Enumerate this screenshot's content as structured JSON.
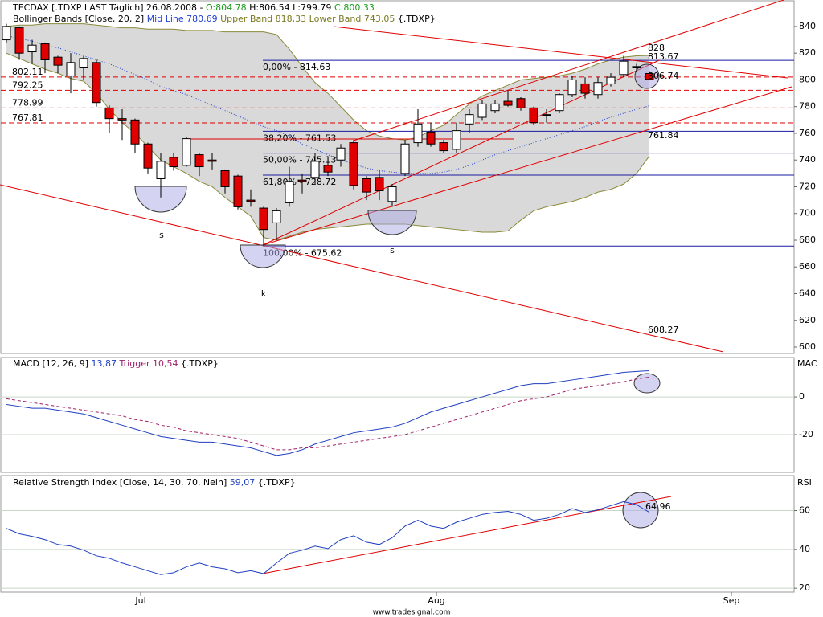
{
  "chart_data": [
    {
      "type": "candlestick",
      "title": "TECDAX [.TDXP LAST Täglich]",
      "date": "26.08.2008 -",
      "ohlc_labels": {
        "open": "O:804.78",
        "high": "H:806.54",
        "low": "L:799.79",
        "close": "C:800.33"
      },
      "indicator": {
        "name": "Bollinger Bands [Close, 20, 2]",
        "mid_label": "Mid Line 780,69",
        "upper_label": "Upper Band 818,33",
        "lower_label": "Lower Band 743,05",
        "source": "{.TDXP}"
      },
      "categories": [
        null,
        null,
        null,
        null,
        null,
        null,
        null,
        null,
        null,
        null,
        null,
        null,
        null,
        null,
        null,
        null,
        null,
        null,
        null,
        null,
        null,
        null,
        null,
        null,
        null,
        null,
        null,
        null,
        null,
        null,
        null,
        null,
        null,
        null,
        null,
        null,
        null,
        null,
        null,
        null,
        null,
        null,
        null,
        null,
        null,
        null,
        null,
        null,
        null,
        null,
        null
      ],
      "open": [
        830,
        839,
        821,
        827,
        817,
        803,
        809,
        813,
        779,
        771,
        770,
        752,
        726,
        742,
        736,
        744,
        740,
        732,
        728,
        710,
        704,
        693,
        708,
        725,
        727,
        736,
        740,
        753,
        726,
        727,
        709,
        730,
        753,
        761,
        753,
        748,
        767,
        772,
        777,
        784,
        786,
        779,
        774,
        777,
        789,
        797,
        789,
        797,
        804,
        810,
        804.78
      ],
      "high": [
        842,
        840,
        830,
        828,
        818,
        820,
        818,
        815,
        781,
        778,
        771,
        753,
        745,
        745,
        757,
        745,
        745,
        733,
        729,
        718,
        705,
        704,
        735,
        730,
        745,
        740,
        752,
        755,
        728,
        732,
        722,
        755,
        778,
        768,
        755,
        768,
        778,
        785,
        785,
        792,
        787,
        780,
        778,
        790,
        803,
        802,
        802,
        805,
        818,
        812,
        806.54
      ],
      "low": [
        828,
        815,
        812,
        805,
        805,
        790,
        800,
        780,
        760,
        755,
        745,
        730,
        712,
        732,
        735,
        728,
        733,
        715,
        703,
        705,
        676,
        680,
        705,
        715,
        722,
        728,
        735,
        718,
        710,
        710,
        705,
        728,
        750,
        750,
        745,
        745,
        760,
        770,
        775,
        780,
        777,
        766,
        768,
        775,
        787,
        786,
        786,
        795,
        802,
        806,
        799.79
      ],
      "close": [
        840,
        820,
        826,
        815,
        811,
        813,
        816,
        783,
        771,
        770,
        752,
        734,
        739,
        735,
        756,
        735,
        739,
        720,
        705,
        709,
        688,
        702,
        724,
        724,
        739,
        731,
        749,
        721,
        716,
        717,
        720,
        752,
        767,
        752,
        747,
        762,
        774,
        782,
        782,
        781,
        779,
        768,
        774,
        789,
        800,
        790,
        798,
        802,
        814,
        809,
        800.33
      ],
      "up_color": "#ffffff",
      "down_color": "#e00000",
      "bands": {
        "color": "#8a8a3a",
        "mid_color": "#2040d0",
        "fill": "#d9d9d9",
        "upper": [
          840,
          841,
          841,
          842,
          842,
          842,
          842,
          841,
          840,
          839,
          839,
          838,
          838,
          838,
          837,
          837,
          837,
          836,
          836,
          836,
          836,
          834,
          823,
          810,
          798,
          790,
          780,
          770,
          762,
          758,
          756,
          755,
          757,
          762,
          766,
          774,
          782,
          788,
          792,
          796,
          800,
          801,
          802,
          803,
          805,
          808,
          812,
          815,
          817,
          818,
          818.33
        ],
        "mid": [
          833,
          831,
          829,
          826,
          824,
          821,
          818,
          815,
          812,
          808,
          804,
          800,
          795,
          792,
          789,
          785,
          781,
          777,
          773,
          769,
          765,
          762,
          758,
          752,
          748,
          744,
          740,
          737,
          734,
          732,
          731,
          730,
          730,
          730,
          731,
          733,
          736,
          740,
          744,
          747,
          750,
          753,
          756,
          759,
          762,
          765,
          769,
          772,
          775,
          778,
          780.69
        ],
        "lower": [
          820,
          816,
          812,
          808,
          805,
          801,
          799,
          790,
          778,
          768,
          760,
          750,
          740,
          735,
          730,
          724,
          720,
          712,
          705,
          698,
          682,
          680,
          683,
          686,
          688,
          689,
          690,
          691,
          692,
          692,
          692,
          692,
          691,
          690,
          689,
          688,
          687,
          686,
          686,
          687,
          695,
          702,
          705,
          707,
          709,
          712,
          716,
          718,
          722,
          730,
          743.05
        ]
      },
      "xlim": [
        -0.4375,
        61.25
      ],
      "ylim": [
        595.2,
        859.2
      ],
      "yticks": [
        600,
        620,
        640,
        660,
        680,
        700,
        720,
        740,
        760,
        780,
        800,
        820,
        840
      ],
      "levels": [
        {
          "value": 802.11,
          "label": "802.11"
        },
        {
          "value": 792.25,
          "label": "792.25"
        },
        {
          "value": 778.99,
          "label": "778.99"
        },
        {
          "value": 767.81,
          "label": "767.81"
        }
      ],
      "level_color": "#e00000",
      "fib_levels": [
        {
          "value": 814.63,
          "label": "0,00% - 814.63"
        },
        {
          "value": 761.53,
          "label": "38,20% - 761.53"
        },
        {
          "value": 745.13,
          "label": "50,00% - 745.13"
        },
        {
          "value": 728.72,
          "label": "61,80% - 728.72"
        },
        {
          "value": 675.62,
          "label": "100,00% - 675.62"
        }
      ],
      "fib_color": "#1a1aa0",
      "annotations": [
        "828",
        "813.67",
        "806.74",
        "761.84",
        "608.27"
      ],
      "markers": [
        "s",
        "s",
        "k"
      ]
    },
    {
      "type": "line",
      "title": "MACD [12, 26, 9]",
      "source": "{.TDXP}",
      "axis_label": "MAC",
      "categories": [
        null,
        null,
        null,
        null,
        null,
        null,
        null,
        null,
        null,
        null,
        null,
        null,
        null,
        null,
        null,
        null,
        null,
        null,
        null,
        null,
        null,
        null,
        null,
        null,
        null,
        null,
        null,
        null,
        null,
        null,
        null,
        null,
        null,
        null,
        null,
        null,
        null,
        null,
        null,
        null,
        null,
        null,
        null,
        null,
        null,
        null,
        null,
        null,
        null,
        null,
        null
      ],
      "series": [
        {
          "name": "MACD [12, 26, 9]",
          "last_label": "13,87",
          "color": "#1f3fbf",
          "dashed": false,
          "values": [
            -4,
            -5,
            -6,
            -6,
            -7,
            -8,
            -9,
            -11,
            -13,
            -15,
            -17,
            -19,
            -21,
            -22,
            -23,
            -24,
            -24,
            -25,
            -26,
            -27,
            -29,
            -31,
            -30,
            -28,
            -25,
            -23,
            -21,
            -19,
            -18,
            -17,
            -16,
            -14,
            -11,
            -8,
            -6,
            -4,
            -2,
            0,
            2,
            4,
            6,
            7,
            7,
            8,
            9,
            10,
            11,
            12,
            13,
            13.5,
            13.87
          ]
        },
        {
          "name": "Trigger",
          "last_label": "10,54",
          "color": "#a0206a",
          "dashed": true,
          "values": [
            -1,
            -2,
            -3,
            -4,
            -5,
            -6,
            -7,
            -8,
            -9,
            -10,
            -12,
            -13,
            -15,
            -16,
            -18,
            -19,
            -20,
            -21,
            -22,
            -24,
            -26,
            -28,
            -28,
            -27,
            -27,
            -26,
            -25,
            -24,
            -23,
            -22,
            -21,
            -20,
            -18,
            -16,
            -14,
            -12,
            -10,
            -8,
            -6,
            -4,
            -2,
            -1,
            0,
            2,
            4,
            5,
            6,
            7,
            8,
            9.5,
            10.54
          ]
        }
      ],
      "xlim": [
        -0.4375,
        61.25
      ],
      "ylim": [
        -40,
        20.9
      ],
      "yticks": [
        -20,
        0
      ]
    },
    {
      "type": "line",
      "title": "Relative Strength Index [Close, 14, 30, 70, Nein]",
      "source": "{.TDXP}",
      "axis_label": "RSI",
      "categories": [
        null,
        null,
        null,
        null,
        null,
        null,
        null,
        null,
        null,
        null,
        null,
        null,
        null,
        null,
        null,
        null,
        null,
        null,
        null,
        null,
        null,
        null,
        null,
        null,
        null,
        null,
        null,
        null,
        null,
        null,
        null,
        null,
        null,
        null,
        null,
        null,
        null,
        null,
        null,
        null,
        null,
        null,
        null,
        null,
        null,
        null,
        null,
        null,
        null,
        null,
        null
      ],
      "series": [
        {
          "name": "Relative Strength Index [Close, 14, 30, 70, Nein]",
          "last_label": "59,07",
          "color": "#2040c0",
          "dashed": false,
          "values": [
            50.8,
            48,
            46.7,
            45,
            42.5,
            41.7,
            39.6,
            36.7,
            35.4,
            33,
            31,
            29,
            27,
            28,
            31,
            33,
            31,
            30,
            28,
            29,
            27.5,
            33,
            38,
            39.6,
            41.7,
            40.4,
            45,
            47,
            43.7,
            42.5,
            46,
            52,
            55,
            52,
            50.8,
            54,
            56,
            58,
            59,
            59.6,
            58,
            55,
            56,
            58,
            61,
            59,
            60.4,
            62.5,
            64.6,
            63,
            59.07
          ]
        }
      ],
      "annotations": [
        "64.96"
      ],
      "xlim": [
        -0.4375,
        61.25
      ],
      "ylim": [
        18,
        78
      ],
      "yticks": [
        20,
        40,
        60
      ],
      "xticks": [
        {
          "value": 10.44,
          "label": "Jul"
        },
        {
          "value": 33.44,
          "label": "Aug"
        },
        {
          "value": 56.375,
          "label": "Sep"
        }
      ]
    }
  ],
  "footer": "www.tradesignal.com"
}
